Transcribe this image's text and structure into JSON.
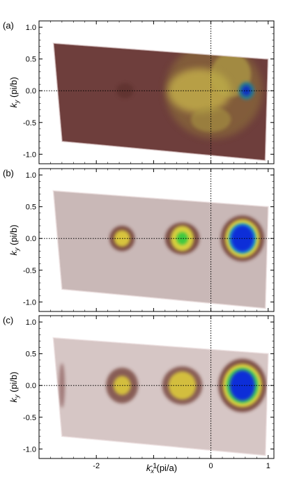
{
  "figure": {
    "panels": [
      {
        "label": "(a)",
        "ylabel_main": "k",
        "ylabel_sub": "y",
        "ylabel_unit": " (pi/b)",
        "map": {
          "background": "#6e3e3c",
          "blobs": [
            {
              "cx": 0.05,
              "cy": 0.0,
              "rx": 0.85,
              "ry": 0.75,
              "color": "#8a6a3a",
              "opacity": 0.7
            },
            {
              "cx": -0.2,
              "cy": 0.0,
              "rx": 0.55,
              "ry": 0.35,
              "color": "#c9b64c",
              "opacity": 0.75
            },
            {
              "cx": 0.35,
              "cy": 0.25,
              "rx": 0.35,
              "ry": 0.35,
              "color": "#b8a84a",
              "opacity": 0.6
            },
            {
              "cx": 0.0,
              "cy": -0.45,
              "rx": 0.35,
              "ry": 0.2,
              "color": "#a99543",
              "opacity": 0.6
            },
            {
              "cx": 0.62,
              "cy": 0.0,
              "rx": 0.14,
              "ry": 0.14,
              "color": "#2e7a8a",
              "opacity": 1.0
            },
            {
              "cx": 0.62,
              "cy": 0.0,
              "rx": 0.08,
              "ry": 0.08,
              "color": "#1030c0",
              "opacity": 1.0
            },
            {
              "cx": -1.5,
              "cy": 0.0,
              "rx": 0.15,
              "ry": 0.12,
              "color": "#5a2e2c",
              "opacity": 0.6
            }
          ]
        }
      },
      {
        "label": "(b)",
        "ylabel_main": "k",
        "ylabel_sub": "y",
        "ylabel_unit": " (pi/b)",
        "map": {
          "background": "#c9b8b7",
          "blobs": [
            {
              "cx": -1.55,
              "cy": 0.0,
              "rx": 0.22,
              "ry": 0.2,
              "color": "#6e3a30",
              "opacity": 0.85
            },
            {
              "cx": -1.55,
              "cy": 0.0,
              "rx": 0.14,
              "ry": 0.13,
              "color": "#d8c43c",
              "opacity": 1.0
            },
            {
              "cx": -0.5,
              "cy": 0.0,
              "rx": 0.3,
              "ry": 0.25,
              "color": "#6e3a30",
              "opacity": 0.85
            },
            {
              "cx": -0.5,
              "cy": 0.0,
              "rx": 0.2,
              "ry": 0.2,
              "color": "#d8d03c",
              "opacity": 1.0
            },
            {
              "cx": -0.5,
              "cy": 0.0,
              "rx": 0.1,
              "ry": 0.1,
              "color": "#40c840",
              "opacity": 1.0
            },
            {
              "cx": 0.55,
              "cy": 0.0,
              "rx": 0.38,
              "ry": 0.36,
              "color": "#6e3a30",
              "opacity": 0.85
            },
            {
              "cx": 0.55,
              "cy": 0.0,
              "rx": 0.3,
              "ry": 0.3,
              "color": "#e0d03c",
              "opacity": 1.0
            },
            {
              "cx": 0.55,
              "cy": 0.0,
              "rx": 0.24,
              "ry": 0.24,
              "color": "#20a8c8",
              "opacity": 1.0
            },
            {
              "cx": 0.55,
              "cy": 0.0,
              "rx": 0.2,
              "ry": 0.21,
              "color": "#0a2ed8",
              "opacity": 1.0
            }
          ]
        }
      },
      {
        "label": "(c)",
        "ylabel_main": "k",
        "ylabel_sub": "y",
        "ylabel_unit": " (pi/b)",
        "map": {
          "background": "#d6c6c5",
          "blobs": [
            {
              "cx": -2.6,
              "cy": 0.0,
              "rx": 0.05,
              "ry": 0.35,
              "color": "#8a5a58",
              "opacity": 0.7
            },
            {
              "cx": -1.55,
              "cy": 0.0,
              "rx": 0.28,
              "ry": 0.28,
              "color": "#6e3a30",
              "opacity": 0.75
            },
            {
              "cx": -1.55,
              "cy": 0.0,
              "rx": 0.15,
              "ry": 0.15,
              "color": "#d8c43c",
              "opacity": 0.95
            },
            {
              "cx": -0.5,
              "cy": 0.0,
              "rx": 0.35,
              "ry": 0.3,
              "color": "#6e3a30",
              "opacity": 0.75
            },
            {
              "cx": -0.5,
              "cy": 0.0,
              "rx": 0.24,
              "ry": 0.22,
              "color": "#d8c43c",
              "opacity": 0.95
            },
            {
              "cx": 0.55,
              "cy": 0.0,
              "rx": 0.42,
              "ry": 0.42,
              "color": "#6e3a30",
              "opacity": 0.85
            },
            {
              "cx": 0.55,
              "cy": 0.0,
              "rx": 0.34,
              "ry": 0.34,
              "color": "#e0d03c",
              "opacity": 1.0
            },
            {
              "cx": 0.55,
              "cy": 0.0,
              "rx": 0.28,
              "ry": 0.28,
              "color": "#40c860",
              "opacity": 1.0
            },
            {
              "cx": 0.55,
              "cy": 0.0,
              "rx": 0.22,
              "ry": 0.24,
              "color": "#0a2ed8",
              "opacity": 1.0
            }
          ]
        }
      }
    ],
    "xlabel_main": "k",
    "xlabel_sub": "x",
    "xlabel_unit": " (pi/a)",
    "x_range": [
      -3.0,
      1.1
    ],
    "y_range": [
      -1.15,
      1.1
    ],
    "x_ticks": [
      -2,
      -1,
      0,
      1
    ],
    "x_tick_labels": [
      "-2",
      "-1",
      "0",
      "1"
    ],
    "y_ticks": [
      1.0,
      0.5,
      0.0,
      -0.5,
      -1.0
    ],
    "y_tick_labels": [
      "1.0",
      "0.5",
      "0.0",
      "-0.5",
      "-1.0"
    ],
    "data_region": {
      "corners": [
        [
          -2.6,
          -0.8
        ],
        [
          -2.75,
          0.75
        ],
        [
          1.0,
          0.5
        ],
        [
          0.95,
          -1.1
        ]
      ]
    }
  }
}
